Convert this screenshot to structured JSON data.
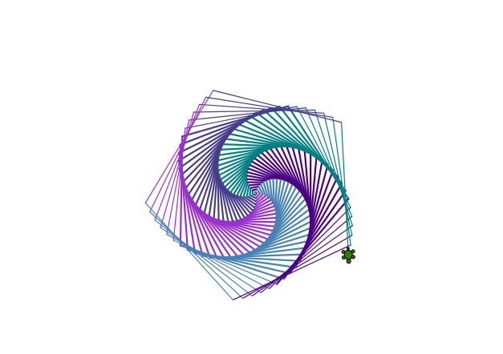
{
  "drawing": {
    "shape": "pentagon spiral",
    "colors": [
      "#4B0082",
      "#4682B4",
      "#9932CC",
      "#483D8B",
      "#008080"
    ],
    "turtle_color": "#2e7d00",
    "background": "#ffffff"
  }
}
